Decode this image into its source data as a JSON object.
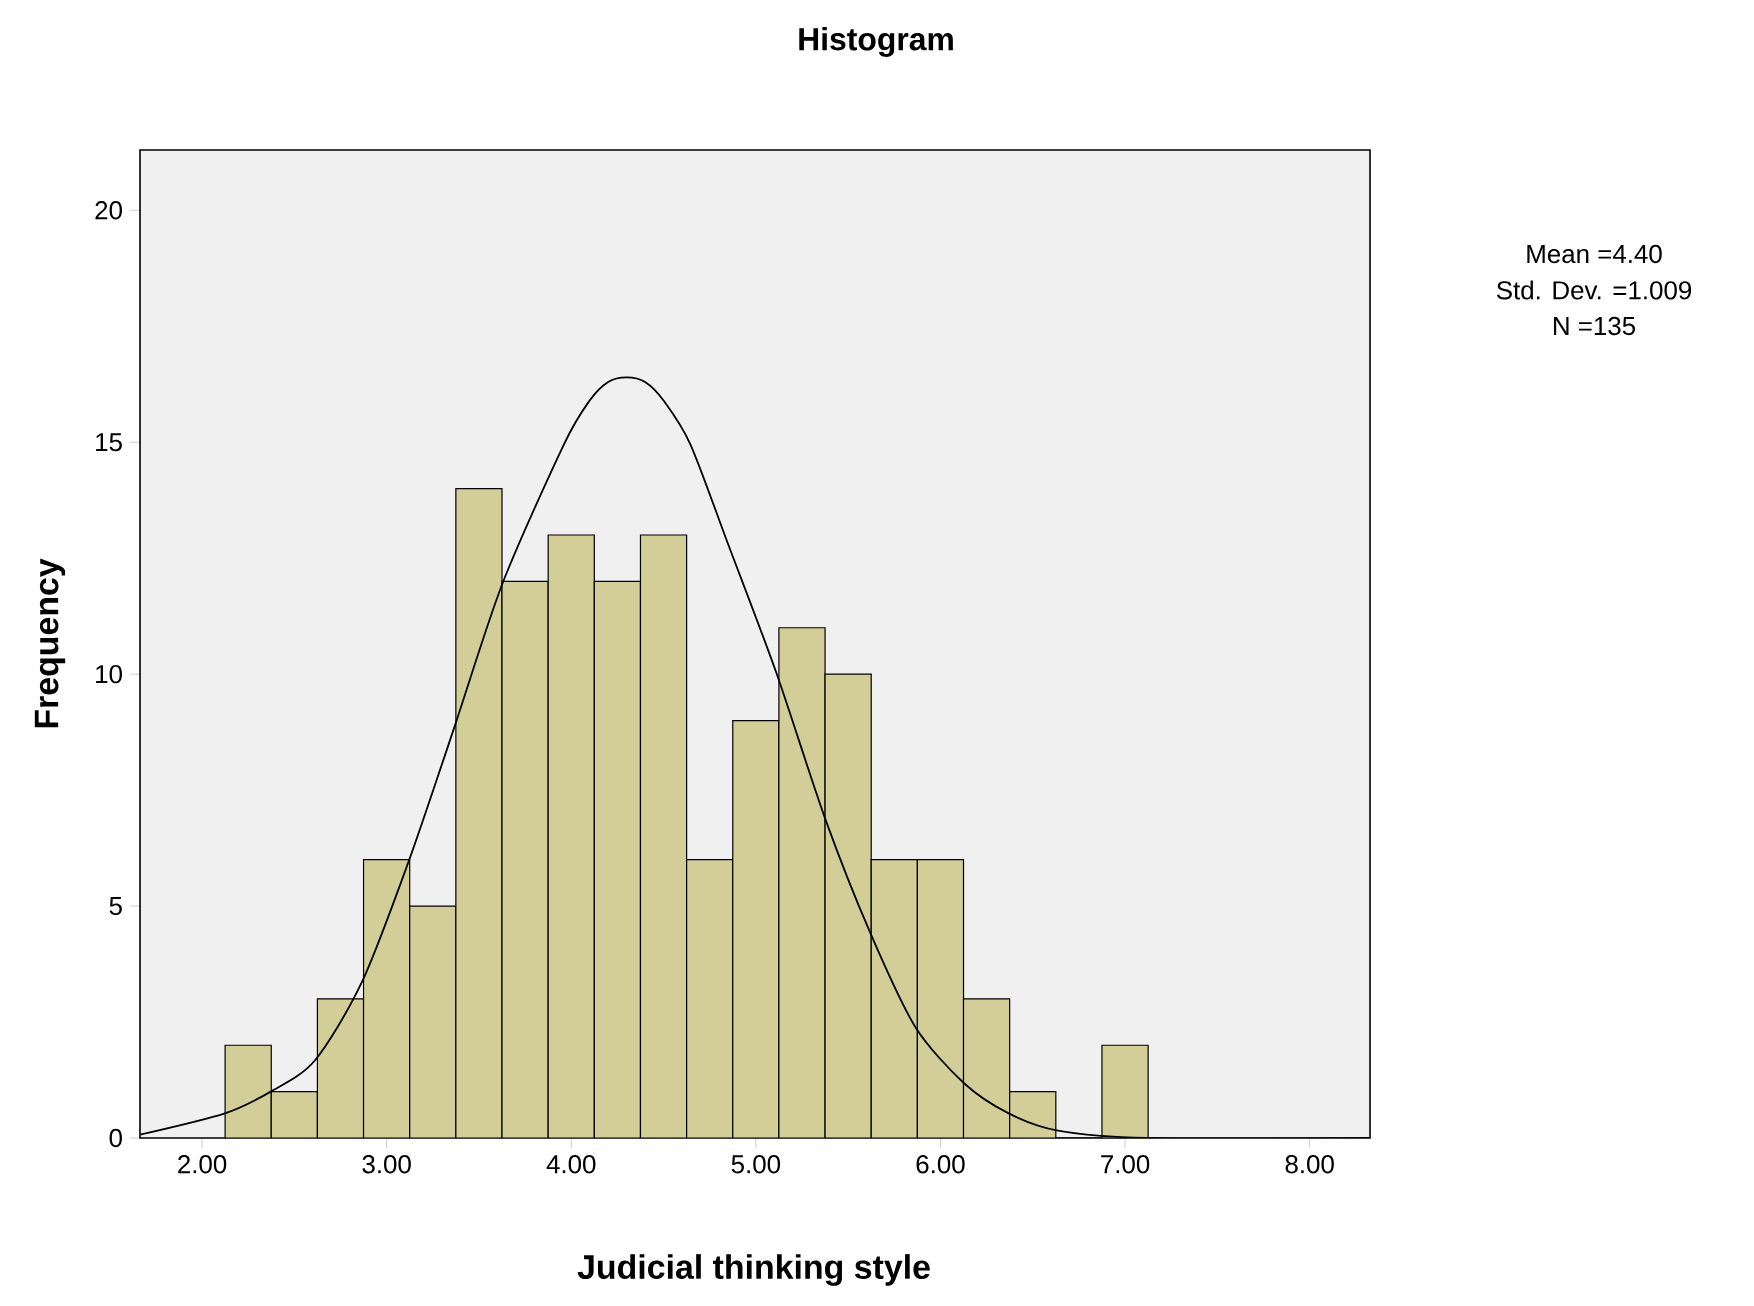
{
  "chart_data": {
    "type": "histogram",
    "title": "Histogram",
    "xlabel": "Judicial thinking style",
    "ylabel": "Frequency",
    "annotations": [
      "Mean =4.40",
      "Std. Dev. =1.009",
      "N =135"
    ],
    "color": "#d3ce97",
    "bins": [
      2.125,
      2.375,
      2.625,
      2.875,
      3.125,
      3.375,
      3.625,
      3.875,
      4.125,
      4.375,
      4.625,
      4.875,
      5.125,
      5.375,
      5.625,
      5.875,
      6.125,
      6.375,
      6.625,
      6.875,
      7.125
    ],
    "values": [
      2,
      1,
      3,
      6,
      5,
      14,
      12,
      13,
      12,
      13,
      6,
      9,
      11,
      10,
      6,
      6,
      3,
      1,
      0,
      2
    ],
    "series": [
      {
        "type": "line",
        "color": "#000000",
        "x": [
          1.664,
          2.124,
          2.372,
          2.611,
          2.867,
          3.119,
          3.363,
          3.628,
          3.96,
          4.1,
          4.2,
          4.3,
          4.4,
          4.5,
          4.646,
          4.85,
          5.11,
          5.376,
          5.62,
          5.863,
          6.128,
          6.37,
          6.637,
          7.12,
          8.327
        ],
        "values": [
          0.07,
          0.53,
          1.0,
          1.67,
          3.37,
          5.96,
          8.81,
          11.96,
          14.95,
          15.9,
          16.3,
          16.4,
          16.3,
          15.9,
          14.95,
          12.8,
          10.04,
          6.88,
          4.42,
          2.4,
          1.18,
          0.53,
          0.16,
          0.0,
          0.0
        ]
      }
    ],
    "xlim": [
      1.664,
      8.327
    ],
    "ylim": [
      0,
      21.3
    ],
    "xticks": [
      {
        "value": 2,
        "label": "2.00"
      },
      {
        "value": 3,
        "label": "3.00"
      },
      {
        "value": 4,
        "label": "4.00"
      },
      {
        "value": 5,
        "label": "5.00"
      },
      {
        "value": 6,
        "label": "6.00"
      },
      {
        "value": 7,
        "label": "7.00"
      },
      {
        "value": 8,
        "label": "8.00"
      }
    ],
    "yticks": [
      0,
      5,
      10,
      15,
      20
    ],
    "grid": false
  }
}
